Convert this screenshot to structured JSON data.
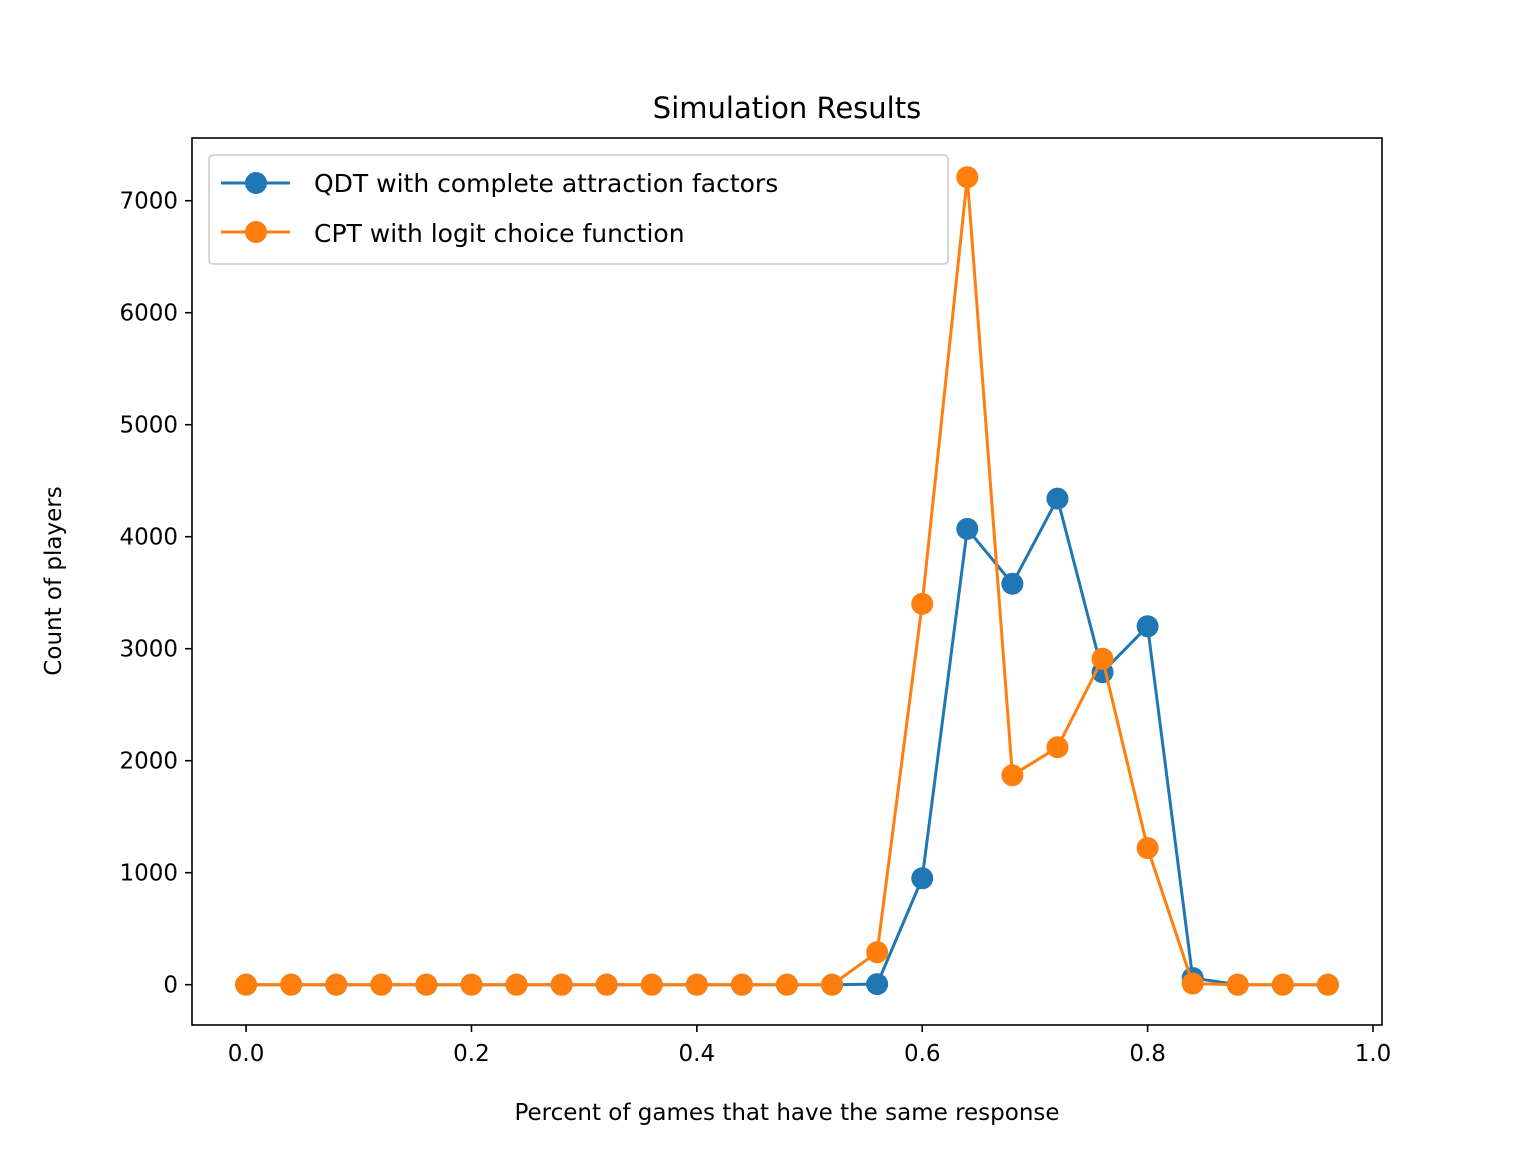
{
  "chart_data": {
    "type": "line",
    "title": "Simulation Results",
    "xlabel": "Percent of games that have the same response",
    "ylabel": "Count of players",
    "xlim": [
      -0.048,
      1.008
    ],
    "ylim": [
      -360,
      7560
    ],
    "xticks": [
      0.0,
      0.2,
      0.4,
      0.6,
      0.8,
      1.0
    ],
    "xtick_labels": [
      "0.0",
      "0.2",
      "0.4",
      "0.6",
      "0.8",
      "1.0"
    ],
    "yticks": [
      0,
      1000,
      2000,
      3000,
      4000,
      5000,
      6000,
      7000
    ],
    "ytick_labels": [
      "0",
      "1000",
      "2000",
      "3000",
      "4000",
      "5000",
      "6000",
      "7000"
    ],
    "grid": false,
    "legend_position": "top-left",
    "x": [
      0.0,
      0.04,
      0.08,
      0.12,
      0.16,
      0.2,
      0.24,
      0.28,
      0.32,
      0.36,
      0.4,
      0.44,
      0.48,
      0.52,
      0.56,
      0.6,
      0.64,
      0.68,
      0.72,
      0.76,
      0.8,
      0.84,
      0.88,
      0.92,
      0.96
    ],
    "series": [
      {
        "name": "QDT with complete attraction factors",
        "color": "#1f77b4",
        "values": [
          0,
          0,
          0,
          0,
          0,
          0,
          0,
          0,
          0,
          0,
          0,
          0,
          0,
          0,
          5,
          950,
          4070,
          3580,
          4340,
          2790,
          3200,
          60,
          0,
          0,
          0
        ]
      },
      {
        "name": "CPT with logit choice function",
        "color": "#ff7f0e",
        "values": [
          0,
          0,
          0,
          0,
          0,
          0,
          0,
          0,
          0,
          0,
          0,
          0,
          0,
          0,
          290,
          3400,
          7210,
          1870,
          2120,
          2910,
          1220,
          10,
          0,
          0,
          0
        ]
      }
    ]
  }
}
